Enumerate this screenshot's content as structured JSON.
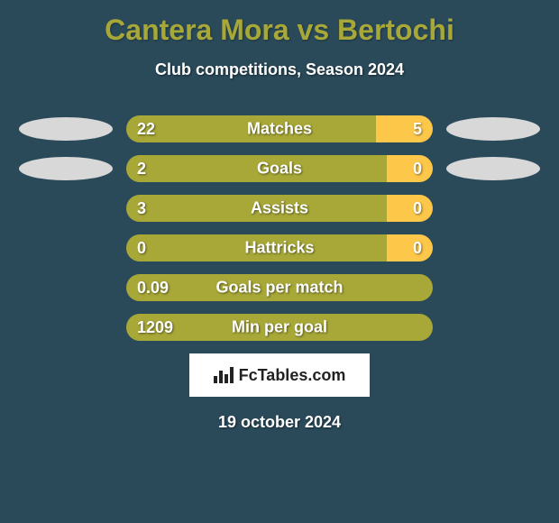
{
  "title": "Cantera Mora vs Bertochi",
  "subtitle": "Club competitions, Season 2024",
  "date": "19 october 2024",
  "branding_text": "FcTables.com",
  "colors": {
    "background": "#2a4a5a",
    "title": "#a8a838",
    "bar_left": "#a8a838",
    "bar_right": "#fdc84a",
    "oval": "#d8d8d8",
    "text": "#ffffff"
  },
  "stats": [
    {
      "label": "Matches",
      "left_value": "22",
      "right_value": "5",
      "left_pct": 81.5,
      "show_ovals": true
    },
    {
      "label": "Goals",
      "left_value": "2",
      "right_value": "0",
      "left_pct": 85,
      "show_ovals": true
    },
    {
      "label": "Assists",
      "left_value": "3",
      "right_value": "0",
      "left_pct": 85,
      "show_ovals": false
    },
    {
      "label": "Hattricks",
      "left_value": "0",
      "right_value": "0",
      "left_pct": 85,
      "show_ovals": false
    },
    {
      "label": "Goals per match",
      "left_value": "0.09",
      "right_value": "",
      "left_pct": 100,
      "show_ovals": false
    },
    {
      "label": "Min per goal",
      "left_value": "1209",
      "right_value": "",
      "left_pct": 100,
      "show_ovals": false
    }
  ]
}
